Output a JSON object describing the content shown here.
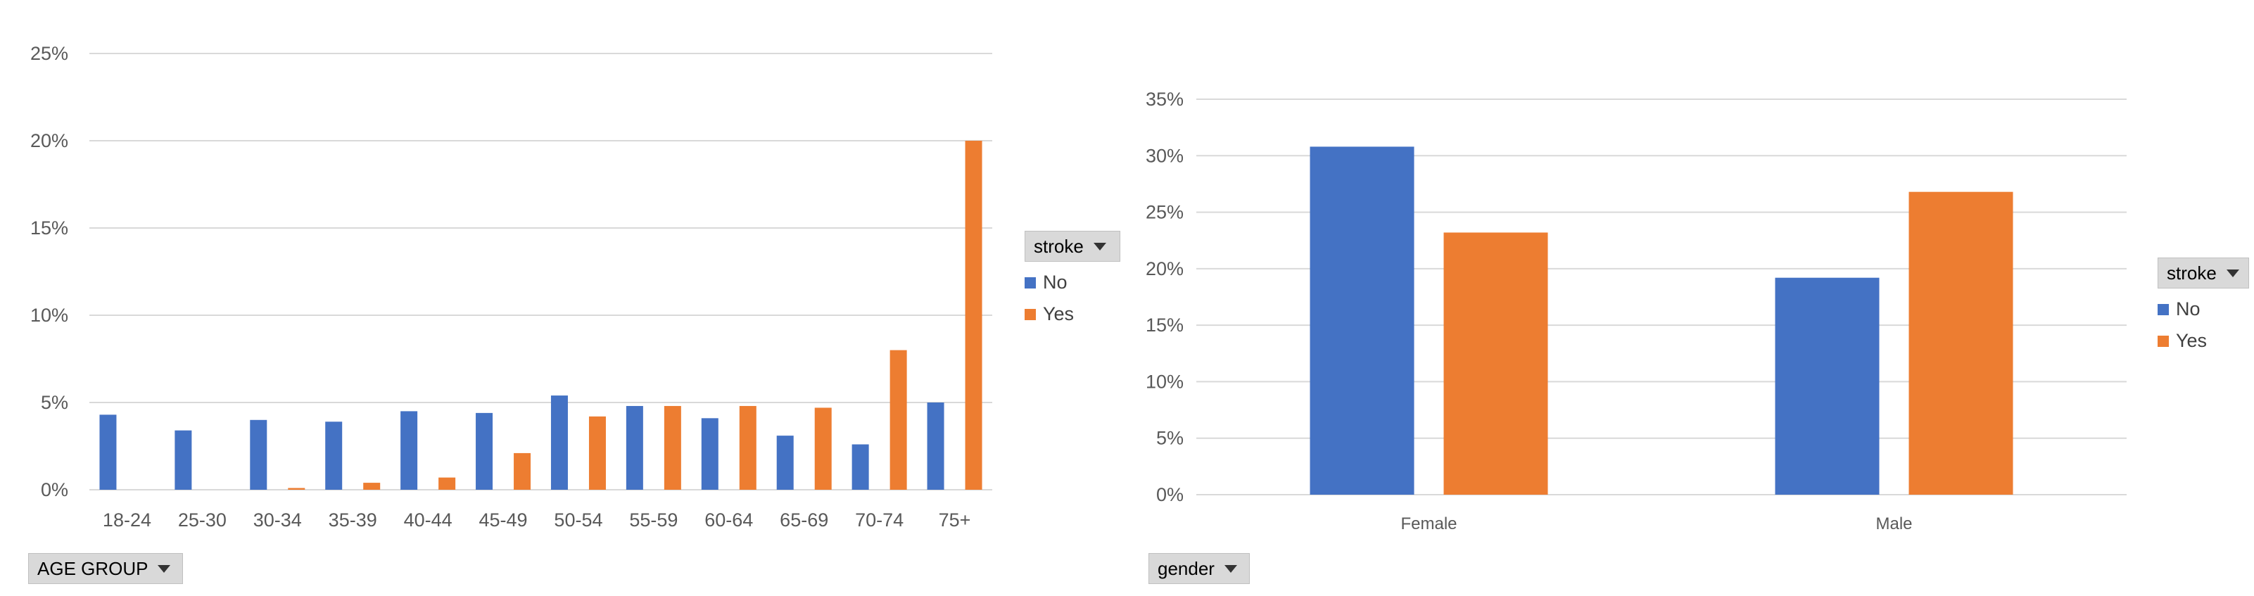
{
  "chart_data": [
    {
      "type": "bar",
      "categories": [
        "18-24",
        "25-30",
        "30-34",
        "35-39",
        "40-44",
        "45-49",
        "50-54",
        "55-59",
        "60-64",
        "65-69",
        "70-74",
        "75+"
      ],
      "series": [
        {
          "name": "No",
          "values": [
            4.3,
            3.4,
            4.0,
            3.9,
            4.5,
            4.4,
            5.4,
            4.8,
            4.1,
            3.1,
            2.6,
            5.0
          ]
        },
        {
          "name": "Yes",
          "values": [
            0.0,
            0.0,
            0.1,
            0.4,
            0.7,
            2.1,
            4.2,
            4.8,
            4.8,
            4.7,
            8.0,
            20.0
          ]
        }
      ],
      "ylim": [
        0,
        25
      ],
      "yticks": [
        "0%",
        "5%",
        "10%",
        "15%",
        "20%",
        "25%"
      ],
      "grid": true,
      "legend_title": "stroke",
      "field_button": "AGE GROUP"
    },
    {
      "type": "bar",
      "categories": [
        "Female",
        "Male"
      ],
      "series": [
        {
          "name": "No",
          "values": [
            30.8,
            19.2
          ]
        },
        {
          "name": "Yes",
          "values": [
            23.2,
            26.8
          ]
        }
      ],
      "ylim": [
        0,
        35
      ],
      "yticks": [
        "0%",
        "5%",
        "10%",
        "15%",
        "20%",
        "25%",
        "30%",
        "35%"
      ],
      "grid": true,
      "legend_title": "stroke",
      "field_button": "gender"
    }
  ],
  "colors": {
    "No": "#4472c4",
    "Yes": "#ed7d31",
    "grid": "#d9d9d9"
  }
}
